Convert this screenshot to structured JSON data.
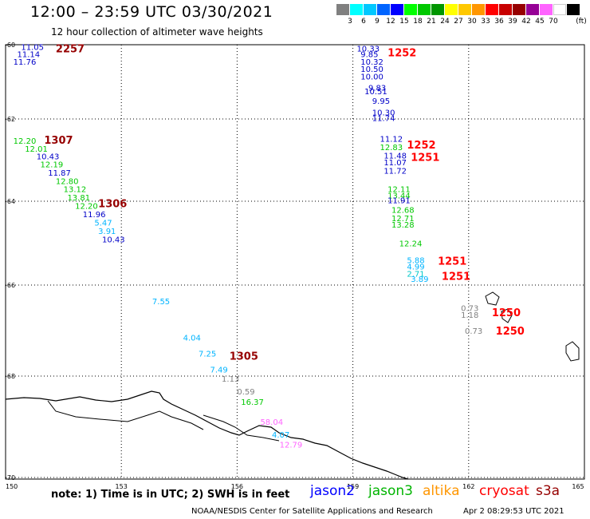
{
  "header": {
    "title": "12:00 – 23:59 UTC 03/30/2021",
    "subtitle": "12 hour collection of altimeter wave heights"
  },
  "scale": {
    "unit": "(ft)",
    "bins": [
      {
        "color": "#808080",
        "label": ""
      },
      {
        "color": "#00ffff",
        "label": "3"
      },
      {
        "color": "#00c8ff",
        "label": "6"
      },
      {
        "color": "#0064ff",
        "label": "9"
      },
      {
        "color": "#0000ff",
        "label": "12"
      },
      {
        "color": "#00ff00",
        "label": "15"
      },
      {
        "color": "#00c800",
        "label": "18"
      },
      {
        "color": "#009600",
        "label": "21"
      },
      {
        "color": "#ffff00",
        "label": "24"
      },
      {
        "color": "#ffc800",
        "label": "27"
      },
      {
        "color": "#ff9600",
        "label": "30"
      },
      {
        "color": "#ff0000",
        "label": "33"
      },
      {
        "color": "#c80000",
        "label": "36"
      },
      {
        "color": "#960000",
        "label": "39"
      },
      {
        "color": "#960096",
        "label": "42"
      },
      {
        "color": "#ff64ff",
        "label": "45"
      },
      {
        "color": "#ffffff",
        "label": "70"
      },
      {
        "color": "#000000",
        "label": ""
      }
    ]
  },
  "axes": {
    "lat_labels": [
      "-60",
      "-62",
      "-64",
      "-66",
      "-68",
      "-70"
    ],
    "lon_labels": [
      "150",
      "153",
      "156",
      "159",
      "162",
      "165"
    ]
  },
  "observations": [
    {
      "text": "11.05",
      "color": "#0000c8",
      "lon": 150.4,
      "lat": -60.05
    },
    {
      "text": "11.14",
      "color": "#0000c8",
      "lon": 150.3,
      "lat": -60.25
    },
    {
      "text": "11.76",
      "color": "#0000c8",
      "lon": 150.2,
      "lat": -60.45
    },
    {
      "text": "12.20",
      "color": "#00c800",
      "lon": 150.2,
      "lat": -62.52
    },
    {
      "text": "12.01",
      "color": "#00c800",
      "lon": 150.5,
      "lat": -62.72
    },
    {
      "text": "10.43",
      "color": "#0000c8",
      "lon": 150.8,
      "lat": -62.9
    },
    {
      "text": "12.19",
      "color": "#00c800",
      "lon": 150.9,
      "lat": -63.1
    },
    {
      "text": "11.87",
      "color": "#0000c8",
      "lon": 151.1,
      "lat": -63.3
    },
    {
      "text": "12.80",
      "color": "#00c800",
      "lon": 151.3,
      "lat": -63.5
    },
    {
      "text": "13.12",
      "color": "#00c800",
      "lon": 151.5,
      "lat": -63.7
    },
    {
      "text": "13.81",
      "color": "#00c800",
      "lon": 151.6,
      "lat": -63.9
    },
    {
      "text": "12.20",
      "color": "#00c800",
      "lon": 151.8,
      "lat": -64.1
    },
    {
      "text": "11.96",
      "color": "#0000c8",
      "lon": 152.0,
      "lat": -64.3
    },
    {
      "text": "5.47",
      "color": "#00b4ff",
      "lon": 152.3,
      "lat": -64.5
    },
    {
      "text": "3.91",
      "color": "#00b4ff",
      "lon": 152.4,
      "lat": -64.7
    },
    {
      "text": "10.43",
      "color": "#0000c8",
      "lon": 152.5,
      "lat": -64.9
    },
    {
      "text": "10.33",
      "color": "#0000c8",
      "lon": 159.1,
      "lat": -60.1
    },
    {
      "text": "9.85",
      "color": "#0000c8",
      "lon": 159.2,
      "lat": -60.25
    },
    {
      "text": "10.32",
      "color": "#0000c8",
      "lon": 159.2,
      "lat": -60.45
    },
    {
      "text": "10.50",
      "color": "#0000c8",
      "lon": 159.2,
      "lat": -60.65
    },
    {
      "text": "10.00",
      "color": "#0000c8",
      "lon": 159.2,
      "lat": -60.85
    },
    {
      "text": "9.83",
      "color": "#0000c8",
      "lon": 159.4,
      "lat": -61.15
    },
    {
      "text": "10.51",
      "color": "#0000c8",
      "lon": 159.3,
      "lat": -61.25
    },
    {
      "text": "9.95",
      "color": "#0000c8",
      "lon": 159.5,
      "lat": -61.5
    },
    {
      "text": "10.30",
      "color": "#0000c8",
      "lon": 159.5,
      "lat": -61.82
    },
    {
      "text": "11.74",
      "color": "#0000c8",
      "lon": 159.5,
      "lat": -61.97
    },
    {
      "text": "11.12",
      "color": "#0000c8",
      "lon": 159.7,
      "lat": -62.48
    },
    {
      "text": "12.83",
      "color": "#00c800",
      "lon": 159.7,
      "lat": -62.68
    },
    {
      "text": "11.48",
      "color": "#0000c8",
      "lon": 159.8,
      "lat": -62.88
    },
    {
      "text": "11.07",
      "color": "#0000c8",
      "lon": 159.8,
      "lat": -63.05
    },
    {
      "text": "11.72",
      "color": "#0000c8",
      "lon": 159.8,
      "lat": -63.25
    },
    {
      "text": "12.11",
      "color": "#00c800",
      "lon": 159.9,
      "lat": -63.7
    },
    {
      "text": "13.44",
      "color": "#00c800",
      "lon": 159.9,
      "lat": -63.85
    },
    {
      "text": "11.91",
      "color": "#0000c8",
      "lon": 159.9,
      "lat": -63.97
    },
    {
      "text": "12.68",
      "color": "#00c800",
      "lon": 160.0,
      "lat": -64.2
    },
    {
      "text": "12.71",
      "color": "#00c800",
      "lon": 160.0,
      "lat": -64.4
    },
    {
      "text": "13.28",
      "color": "#00c800",
      "lon": 160.0,
      "lat": -64.55
    },
    {
      "text": "12.24",
      "color": "#00c800",
      "lon": 160.2,
      "lat": -65.0
    },
    {
      "text": "5.88",
      "color": "#00b4ff",
      "lon": 160.4,
      "lat": -65.4
    },
    {
      "text": "4.99",
      "color": "#00b4ff",
      "lon": 160.4,
      "lat": -65.55
    },
    {
      "text": "2.71",
      "color": "#00c8c8",
      "lon": 160.4,
      "lat": -65.72
    },
    {
      "text": "3.89",
      "color": "#00b4ff",
      "lon": 160.5,
      "lat": -65.85
    },
    {
      "text": "7.55",
      "color": "#00b4ff",
      "lon": 153.8,
      "lat": -66.35
    },
    {
      "text": "4.04",
      "color": "#00b4ff",
      "lon": 154.6,
      "lat": -67.15
    },
    {
      "text": "7.25",
      "color": "#00b4ff",
      "lon": 155.0,
      "lat": -67.5
    },
    {
      "text": "7.49",
      "color": "#00b4ff",
      "lon": 155.3,
      "lat": -67.85
    },
    {
      "text": "1.13",
      "color": "#808080",
      "lon": 155.6,
      "lat": -68.05
    },
    {
      "text": "0.59",
      "color": "#808080",
      "lon": 156.0,
      "lat": -68.3
    },
    {
      "text": "16.37",
      "color": "#00c800",
      "lon": 156.1,
      "lat": -68.5
    },
    {
      "text": "58.04",
      "color": "#ff64ff",
      "lon": 156.6,
      "lat": -68.9
    },
    {
      "text": "4.07",
      "color": "#00b4ff",
      "lon": 156.9,
      "lat": -69.15
    },
    {
      "text": "12.79",
      "color": "#ff64ff",
      "lon": 157.1,
      "lat": -69.35
    },
    {
      "text": "0.73",
      "color": "#808080",
      "lon": 161.8,
      "lat": -66.5
    },
    {
      "text": "1.18",
      "color": "#808080",
      "lon": 161.8,
      "lat": -66.65
    },
    {
      "text": "0.73",
      "color": "#808080",
      "lon": 161.9,
      "lat": -67.0
    }
  ],
  "times": [
    {
      "text": "2257",
      "color": "#960000",
      "lon": 151.3,
      "lat": -60.1
    },
    {
      "text": "1307",
      "color": "#960000",
      "lon": 151.0,
      "lat": -62.5
    },
    {
      "text": "1306",
      "color": "#960000",
      "lon": 152.4,
      "lat": -64.05
    },
    {
      "text": "1252",
      "color": "#ff0000",
      "lon": 159.9,
      "lat": -60.2
    },
    {
      "text": "1252",
      "color": "#ff0000",
      "lon": 160.4,
      "lat": -62.62
    },
    {
      "text": "1251",
      "color": "#ff0000",
      "lon": 160.5,
      "lat": -62.92
    },
    {
      "text": "1251",
      "color": "#ff0000",
      "lon": 161.2,
      "lat": -65.42
    },
    {
      "text": "1251",
      "color": "#ff0000",
      "lon": 161.3,
      "lat": -65.78
    },
    {
      "text": "1250",
      "color": "#ff0000",
      "lon": 162.6,
      "lat": -66.6
    },
    {
      "text": "1250",
      "color": "#ff0000",
      "lon": 162.7,
      "lat": -67.0
    },
    {
      "text": "1305",
      "color": "#960000",
      "lon": 155.8,
      "lat": -67.55
    }
  ],
  "note": "note: 1) Time is in UTC; 2) SWH is in feet",
  "legend": [
    {
      "name": "jason2",
      "color": "#0000ff"
    },
    {
      "name": "jason3",
      "color": "#00b400"
    },
    {
      "name": "altika",
      "color": "#ff9600"
    },
    {
      "name": "cryosat",
      "color": "#ff0000"
    },
    {
      "name": "s3a",
      "color": "#960000"
    }
  ],
  "footer": {
    "credit": "NOAA/NESDIS Center for Satellite Applications and Research",
    "generated": "Apr  2 08:29:53 UTC 2021"
  }
}
